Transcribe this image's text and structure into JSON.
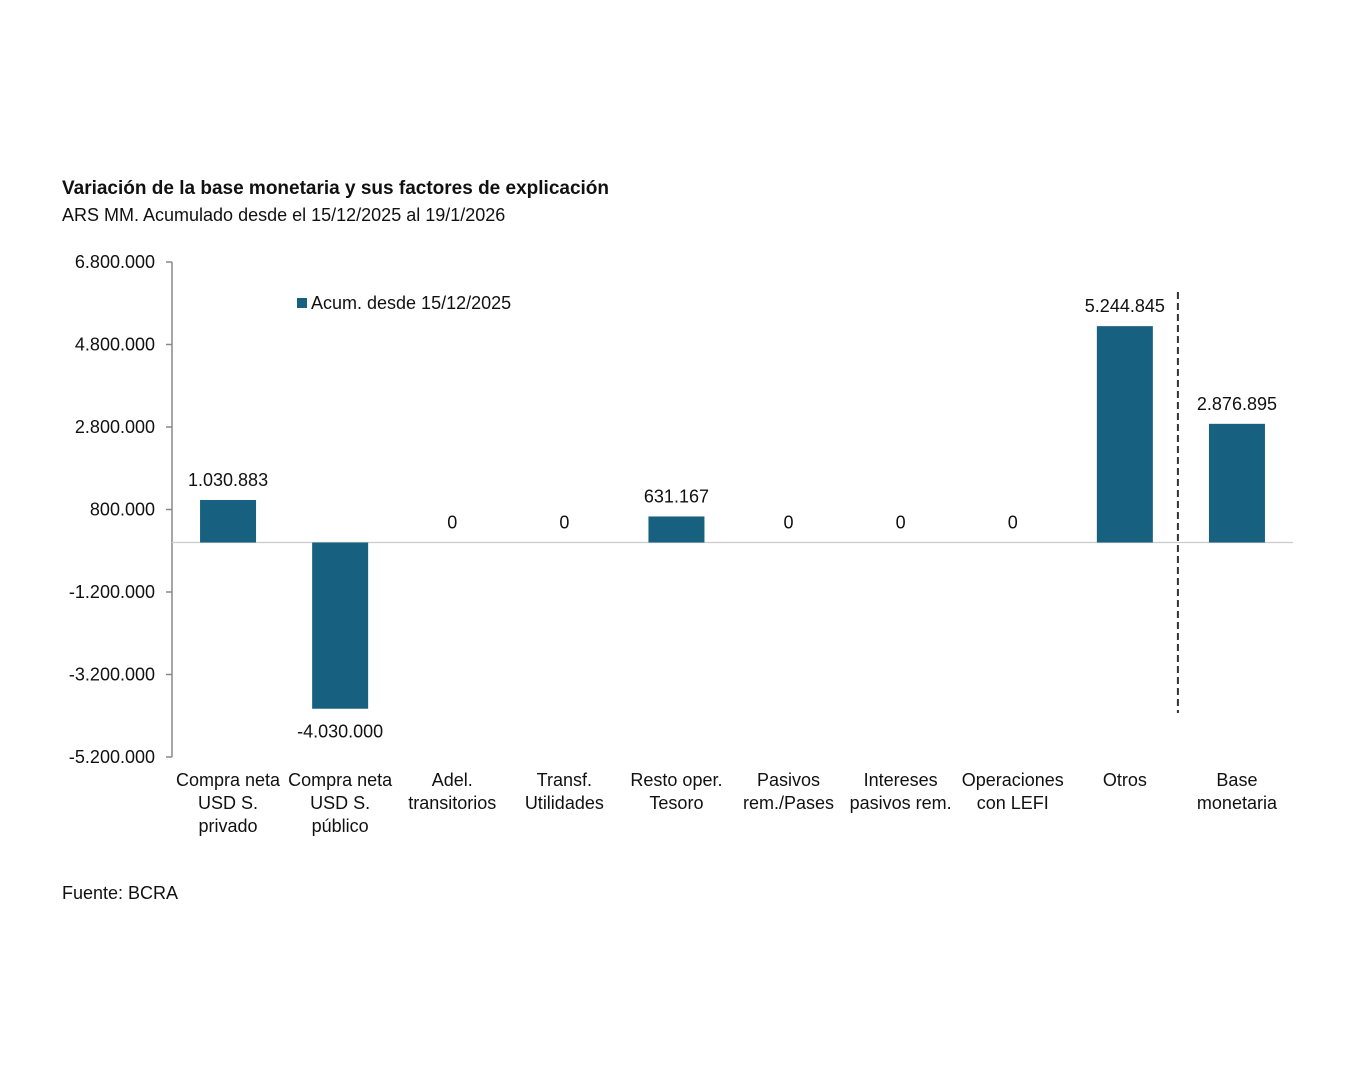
{
  "chart_data": {
    "type": "bar",
    "title": "Variación de la base monetaria y sus factores de explicación",
    "subtitle": "ARS MM. Acumulado desde el 15/12/2025 al 19/1/2026",
    "source": "Fuente: BCRA",
    "categories": [
      [
        "Compra neta",
        "USD S.",
        "privado"
      ],
      [
        "Compra neta",
        "USD S.",
        "público"
      ],
      [
        "Adel.",
        "transitorios"
      ],
      [
        "Transf.",
        "Utilidades"
      ],
      [
        "Resto oper.",
        "Tesoro"
      ],
      [
        "Pasivos",
        "rem./Pases"
      ],
      [
        "Intereses",
        "pasivos rem."
      ],
      [
        "Operaciones",
        "con LEFI"
      ],
      [
        "Otros"
      ],
      [
        "Base",
        "monetaria"
      ]
    ],
    "series": [
      {
        "name": "Acum. desde 15/12/2025",
        "values": [
          1030883,
          -4030000,
          0,
          0,
          631167,
          0,
          0,
          0,
          5244845,
          2876895
        ]
      }
    ],
    "data_labels": [
      "1.030.883",
      "-4.030.000",
      "0",
      "0",
      "631.167",
      "0",
      "0",
      "0",
      "5.244.845",
      "2.876.895"
    ],
    "ylim": [
      -5200000,
      6800000
    ],
    "yticks": [
      6800000,
      4800000,
      2800000,
      800000,
      -1200000,
      -3200000,
      -5200000
    ],
    "ytick_labels": [
      "6.800.000",
      "4.800.000",
      "2.800.000",
      "800.000",
      "-1.200.000",
      "-3.200.000",
      "-5.200.000"
    ],
    "legend": "top-left",
    "grid": false,
    "separator_before_last": true,
    "bar_color": "#17607f"
  }
}
